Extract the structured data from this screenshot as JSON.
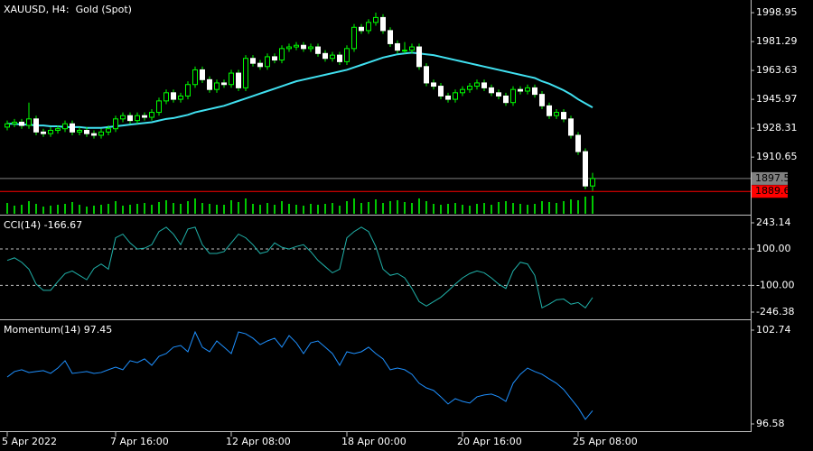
{
  "chart_data": [
    {
      "type": "candlestick",
      "title": "XAUUSD, H4:  Gold (Spot)",
      "categories": [
        "5 Apr 2022",
        null,
        null,
        null,
        null,
        null,
        null,
        null,
        null,
        null,
        null,
        null,
        null,
        null,
        null,
        "7 Apr 16:00",
        null,
        null,
        null,
        null,
        null,
        null,
        null,
        null,
        null,
        null,
        null,
        null,
        null,
        null,
        null,
        "12 Apr 08:00",
        null,
        null,
        null,
        null,
        null,
        null,
        null,
        null,
        null,
        null,
        null,
        null,
        null,
        null,
        null,
        "18 Apr 00:00",
        null,
        null,
        null,
        null,
        null,
        null,
        null,
        null,
        null,
        null,
        null,
        null,
        null,
        null,
        null,
        "20 Apr 16:00",
        null,
        null,
        null,
        null,
        null,
        null,
        null,
        null,
        null,
        null,
        null,
        null,
        null,
        null,
        null,
        "25 Apr 08:00",
        null,
        null
      ],
      "open": [
        1929,
        1931,
        1932,
        1930,
        1934,
        1926,
        1925,
        1927,
        1928,
        1931,
        1926,
        1927,
        1925,
        1924,
        1926,
        1928,
        1934,
        1936,
        1933,
        1936,
        1935,
        1938,
        1945,
        1950,
        1946,
        1948,
        1955,
        1964,
        1958,
        1952,
        1956,
        1955,
        1962,
        1953,
        1971,
        1968,
        1966,
        1972,
        1970,
        1977,
        1978,
        1979,
        1977,
        1978,
        1974,
        1971,
        1973,
        1969,
        1977,
        1990,
        1988,
        1993,
        1996,
        1988,
        1980,
        1976,
        1976,
        1978,
        1966,
        1956,
        1954,
        1948,
        1946,
        1950,
        1952,
        1954,
        1956,
        1953,
        1950,
        1948,
        1944,
        1952,
        1951,
        1953,
        1949,
        1942,
        1936,
        1938,
        1934,
        1924,
        1914,
        1893
      ],
      "high": [
        1933,
        1934,
        1934,
        1944,
        1936,
        1928,
        1929,
        1930,
        1933,
        1933,
        1929,
        1929,
        1927,
        1928,
        1930,
        1936,
        1938,
        1938,
        1938,
        1938,
        1940,
        1947,
        1952,
        1952,
        1950,
        1957,
        1966,
        1966,
        1960,
        1958,
        1958,
        1964,
        1964,
        1973,
        1973,
        1970,
        1974,
        1974,
        1979,
        1980,
        1981,
        1981,
        1980,
        1980,
        1976,
        1975,
        1975,
        1979,
        1992,
        1992,
        1995,
        1999,
        1998,
        1990,
        1982,
        1981,
        1980,
        1980,
        1968,
        1958,
        1956,
        1950,
        1952,
        1954,
        1956,
        1958,
        1958,
        1955,
        1952,
        1950,
        1954,
        1954,
        1955,
        1955,
        1951,
        1944,
        1940,
        1940,
        1936,
        1926,
        1916,
        1901
      ],
      "low": [
        1927,
        1929,
        1928,
        1928,
        1924,
        1923,
        1923,
        1925,
        1926,
        1924,
        1924,
        1923,
        1922,
        1922,
        1924,
        1926,
        1932,
        1931,
        1931,
        1933,
        1933,
        1936,
        1943,
        1944,
        1944,
        1946,
        1953,
        1956,
        1950,
        1950,
        1953,
        1953,
        1951,
        1951,
        1966,
        1964,
        1964,
        1968,
        1968,
        1975,
        1976,
        1975,
        1975,
        1972,
        1969,
        1969,
        1967,
        1967,
        1975,
        1986,
        1986,
        1991,
        1986,
        1978,
        1974,
        1974,
        1974,
        1964,
        1954,
        1952,
        1946,
        1944,
        1944,
        1948,
        1950,
        1952,
        1951,
        1948,
        1946,
        1942,
        1942,
        1949,
        1949,
        1947,
        1940,
        1934,
        1934,
        1932,
        1922,
        1912,
        1891,
        1890
      ],
      "close": [
        1931,
        1932,
        1930,
        1934,
        1926,
        1925,
        1927,
        1928,
        1931,
        1926,
        1927,
        1925,
        1924,
        1926,
        1928,
        1934,
        1936,
        1933,
        1936,
        1935,
        1938,
        1945,
        1950,
        1946,
        1948,
        1955,
        1964,
        1958,
        1952,
        1956,
        1955,
        1962,
        1953,
        1971,
        1968,
        1966,
        1972,
        1970,
        1977,
        1978,
        1979,
        1977,
        1978,
        1974,
        1971,
        1973,
        1969,
        1977,
        1990,
        1988,
        1993,
        1996,
        1988,
        1980,
        1976,
        1976,
        1978,
        1966,
        1956,
        1954,
        1948,
        1946,
        1950,
        1952,
        1954,
        1956,
        1953,
        1950,
        1948,
        1944,
        1952,
        1951,
        1953,
        1949,
        1942,
        1936,
        1938,
        1934,
        1924,
        1914,
        1893,
        1897.56
      ],
      "up_color": "#00ff00",
      "down_color": "#ffffff",
      "overlay_values": [
        1931,
        1931,
        1930.5,
        1930.5,
        1930,
        1930,
        1929.5,
        1929.5,
        1929,
        1929,
        1929,
        1928.5,
        1928.5,
        1928.5,
        1929,
        1929.5,
        1930,
        1930.5,
        1931,
        1931.5,
        1932,
        1933,
        1934,
        1934.5,
        1935.5,
        1936.5,
        1938,
        1939,
        1940,
        1941,
        1942,
        1943.5,
        1945,
        1946.5,
        1948,
        1949.5,
        1951,
        1952.5,
        1954,
        1955.5,
        1957,
        1958,
        1959,
        1960,
        1961,
        1962,
        1963,
        1964,
        1965.5,
        1967,
        1968.5,
        1970,
        1971.5,
        1972.5,
        1973.5,
        1974,
        1974.5,
        1974,
        1973.5,
        1973,
        1972,
        1971,
        1970,
        1969,
        1968,
        1967,
        1966,
        1965,
        1964,
        1963,
        1962,
        1961,
        1960,
        1959,
        1957,
        1955.5,
        1953.5,
        1951.5,
        1949,
        1946,
        1943.5,
        1941
      ],
      "overlay_color": "#40e0f0",
      "volume": [
        60,
        45,
        50,
        70,
        55,
        40,
        45,
        50,
        55,
        65,
        50,
        40,
        45,
        50,
        55,
        70,
        45,
        50,
        55,
        60,
        50,
        65,
        75,
        60,
        55,
        70,
        85,
        60,
        55,
        50,
        50,
        75,
        65,
        85,
        55,
        50,
        60,
        50,
        70,
        55,
        50,
        45,
        55,
        50,
        55,
        60,
        45,
        70,
        85,
        60,
        65,
        80,
        60,
        70,
        75,
        65,
        60,
        85,
        70,
        55,
        50,
        55,
        60,
        50,
        45,
        55,
        60,
        50,
        65,
        70,
        60,
        55,
        50,
        55,
        70,
        65,
        60,
        70,
        80,
        75,
        95,
        100
      ],
      "vlim": [
        0,
        100
      ],
      "volume_color": "#00c800",
      "ylim": [
        1876,
        2005.6
      ],
      "yticks": [
        1910.65,
        1928.31,
        1945.97,
        1963.63,
        1981.29,
        1998.95
      ],
      "price_lines": [
        {
          "value": 1897.56,
          "color": "#808080"
        },
        {
          "value": 1889.66,
          "color": "#ff0000"
        }
      ]
    },
    {
      "type": "line",
      "title": "CCI(14) -166.67",
      "color": "#20b2aa",
      "values": [
        37,
        51,
        27,
        -11,
        -93,
        -127,
        -127,
        -79,
        -35,
        -21,
        -45,
        -69,
        -7,
        17,
        -11,
        161,
        181,
        133,
        99,
        104,
        123,
        195,
        219,
        181,
        123,
        209,
        219,
        123,
        75,
        75,
        85,
        133,
        181,
        161,
        123,
        75,
        85,
        133,
        109,
        99,
        113,
        123,
        85,
        37,
        3,
        -31,
        -11,
        161,
        195,
        219,
        195,
        113,
        -11,
        -45,
        -35,
        -59,
        -117,
        -189,
        -213,
        -189,
        -165,
        -131,
        -93,
        -59,
        -35,
        -21,
        -31,
        -59,
        -93,
        -117,
        -21,
        27,
        17,
        -45,
        -223,
        -203,
        -179,
        -175,
        -203,
        -194,
        -223,
        -166.67
      ],
      "ylim": [
        -246.38,
        243.14
      ],
      "yticks": [
        243.14,
        {
          "value": 100,
          "label": "100.00"
        },
        {
          "value": -100,
          "label": "-100.00"
        },
        -246.38
      ],
      "levels": [
        100,
        -100
      ]
    },
    {
      "type": "line",
      "title": "Momentum(14) 97.45",
      "color": "#1e90ff",
      "values": [
        99.66,
        100.02,
        100.14,
        99.96,
        100.02,
        100.08,
        99.9,
        100.25,
        100.73,
        99.9,
        99.96,
        100.02,
        99.9,
        99.96,
        100.14,
        100.31,
        100.14,
        100.73,
        100.61,
        100.85,
        100.43,
        101.02,
        101.2,
        101.62,
        101.73,
        101.32,
        102.62,
        101.62,
        101.32,
        102.03,
        101.62,
        101.2,
        102.62,
        102.5,
        102.21,
        101.79,
        102.03,
        102.21,
        101.62,
        102.38,
        101.91,
        101.2,
        101.91,
        102.03,
        101.62,
        101.2,
        100.43,
        101.32,
        101.2,
        101.32,
        101.62,
        101.2,
        100.85,
        100.14,
        100.25,
        100.14,
        99.84,
        99.25,
        98.95,
        98.78,
        98.36,
        97.89,
        98.24,
        98.06,
        97.95,
        98.36,
        98.48,
        98.54,
        98.36,
        98.06,
        99.25,
        99.84,
        100.25,
        100.02,
        99.84,
        99.54,
        99.25,
        98.84,
        98.24,
        97.65,
        96.88,
        97.45
      ],
      "ylim": [
        96.58,
        102.74
      ],
      "yticks": [
        102.74,
        96.58
      ]
    }
  ]
}
